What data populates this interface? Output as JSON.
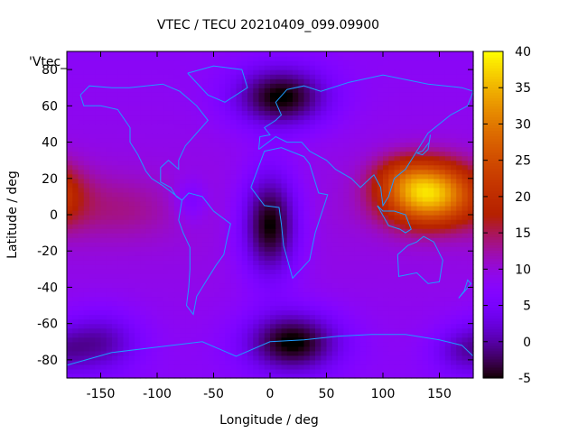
{
  "chart_data": {
    "type": "heatmap",
    "title": "VTEC / TECU 20210409_099.09900",
    "xlabel": "Longitude / deg",
    "ylabel": "Latitude / deg",
    "series_label": "'Vtec_",
    "xlim": [
      -180,
      180
    ],
    "ylim": [
      -90,
      90
    ],
    "x_ticks": [
      -150,
      -100,
      -50,
      0,
      50,
      100,
      150
    ],
    "y_ticks": [
      -80,
      -60,
      -40,
      -20,
      0,
      20,
      40,
      60,
      80
    ],
    "colorbar": {
      "range": [
        -5,
        40
      ],
      "ticks": [
        -5,
        0,
        5,
        10,
        15,
        20,
        25,
        30,
        35,
        40
      ],
      "palette": "gnuplot black-purple-red-orange-yellow"
    },
    "grid_step_deg": {
      "lon": 5,
      "lat": 2.5
    },
    "features": [
      {
        "lon": 140,
        "lat": 12,
        "vtec": 38,
        "sigma_lon": 28,
        "sigma_lat": 12
      },
      {
        "lon": 115,
        "lat": 22,
        "vtec": 14,
        "sigma_lon": 18,
        "sigma_lat": 8
      },
      {
        "lon": 115,
        "lat": -8,
        "vtec": 10,
        "sigma_lon": 25,
        "sigma_lat": 12
      },
      {
        "lon": -170,
        "lat": 3,
        "vtec": 12,
        "sigma_lon": 20,
        "sigma_lat": 14
      },
      {
        "lon": -130,
        "lat": 4,
        "vtec": 13,
        "sigma_lon": 22,
        "sigma_lat": 13
      },
      {
        "lon": -95,
        "lat": 3,
        "vtec": 11,
        "sigma_lon": 20,
        "sigma_lat": 13
      },
      {
        "lon": -70,
        "lat": 8,
        "vtec": 6,
        "sigma_lon": 10,
        "sigma_lat": 8
      },
      {
        "lon": 0,
        "lat": -5,
        "vtec": -5,
        "sigma_lon": 18,
        "sigma_lat": 20
      },
      {
        "lon": 10,
        "lat": 65,
        "vtec": -4,
        "sigma_lon": 30,
        "sigma_lat": 12
      },
      {
        "lon": 20,
        "lat": -70,
        "vtec": -4,
        "sigma_lon": 30,
        "sigma_lat": 12
      },
      {
        "lon": -150,
        "lat": -70,
        "vtec": 2,
        "sigma_lon": 25,
        "sigma_lat": 12
      },
      {
        "lon": 170,
        "lat": -75,
        "vtec": 4,
        "sigma_lon": 20,
        "sigma_lat": 10
      }
    ],
    "background_vtec": 10
  },
  "colors": {
    "coastline": "#1e9bff",
    "axis": "#000000"
  }
}
